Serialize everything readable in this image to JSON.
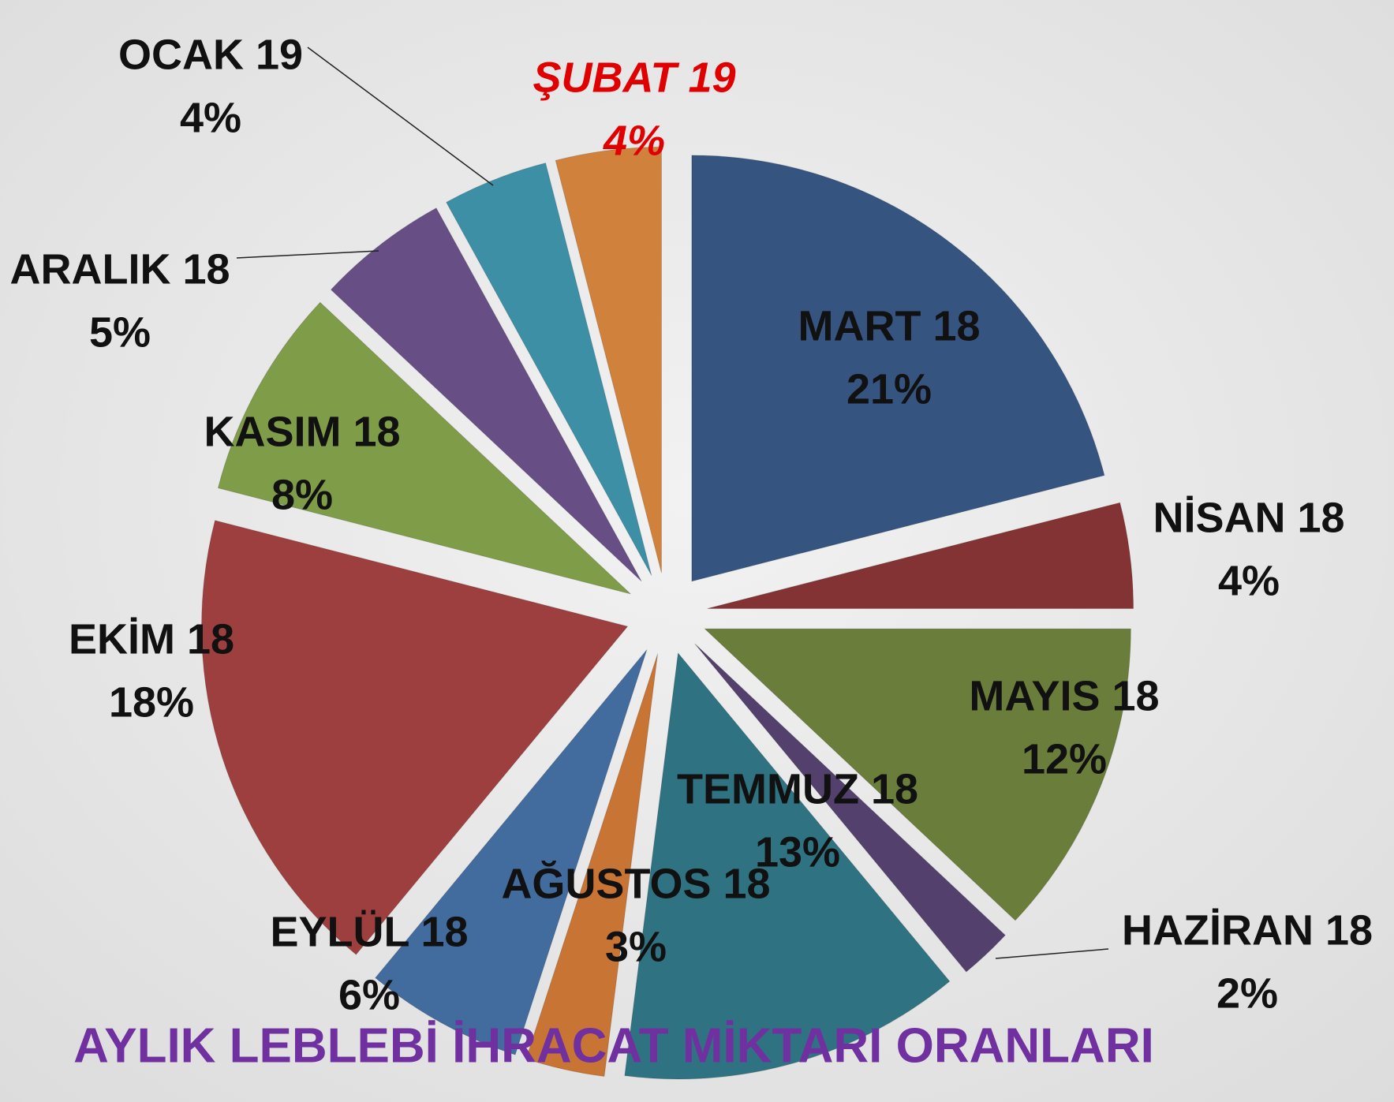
{
  "chart_data": {
    "type": "pie",
    "title": "AYLIK LEBLEBİ İHRACAT MİKTARI ORANLARI",
    "categories": [
      "MART 18",
      "NİSAN 18",
      "MAYIS 18",
      "HAZİRAN 18",
      "TEMMUZ 18",
      "AĞUSTOS 18",
      "EYLÜL 18",
      "EKİM 18",
      "KASIM 18",
      "ARALIK 18",
      "OCAK 19",
      "ŞUBAT 19"
    ],
    "values": [
      21,
      4,
      12,
      2,
      13,
      3,
      6,
      18,
      8,
      5,
      4,
      4
    ],
    "value_labels": [
      "21%",
      "4%",
      "12%",
      "2%",
      "13%",
      "3%",
      "6%",
      "18%",
      "8%",
      "5%",
      "4%",
      "4%"
    ],
    "colors": [
      "#35547f",
      "#833333",
      "#6a7d3a",
      "#54406c",
      "#2f7382",
      "#c77434",
      "#426b9e",
      "#9e3f3f",
      "#7f9c48",
      "#674f85",
      "#3d8fa6",
      "#d0823c"
    ]
  }
}
